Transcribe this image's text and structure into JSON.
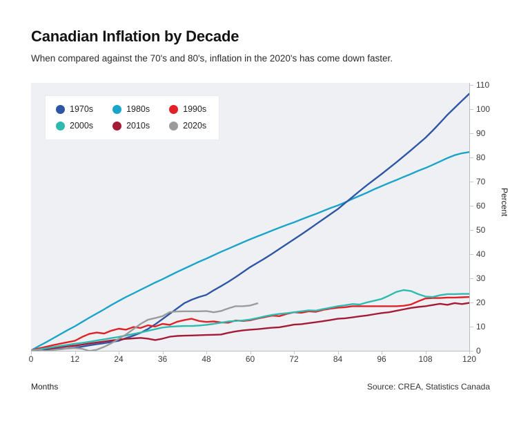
{
  "header": {
    "title": "Canadian Inflation by Decade",
    "subtitle": "When compared against the 70's and 80's, inflation in the 2020's has come down faster."
  },
  "footer": {
    "xlabel": "Months",
    "source": "Source: CREA, Statistics Canada"
  },
  "axes": {
    "ylabel": "Percent",
    "x_ticks": [
      0,
      12,
      24,
      36,
      48,
      60,
      72,
      84,
      96,
      108,
      120
    ],
    "y_ticks": [
      0,
      10,
      20,
      30,
      40,
      50,
      60,
      70,
      80,
      90,
      100,
      110
    ]
  },
  "colors": {
    "panel_background": "#eef0f3",
    "axis": "#b9bdc2",
    "legend_card": "#ffffff"
  },
  "chart_data": {
    "type": "line",
    "title": "Canadian Inflation by Decade",
    "xlabel": "Months",
    "ylabel": "Percent",
    "xlim": [
      0,
      120
    ],
    "ylim": [
      0,
      110
    ],
    "grid": false,
    "legend_position": "top-left",
    "x_step_months": 2,
    "series": [
      {
        "name": "1970s",
        "color": "#2e56a5",
        "values": [
          0,
          0.2,
          0.4,
          0.5,
          0.7,
          0.9,
          1.2,
          1.6,
          2.1,
          2.6,
          3.0,
          3.5,
          4.0,
          5.1,
          6.1,
          7.3,
          8.9,
          10.8,
          13.0,
          15.2,
          17.4,
          19.6,
          21.0,
          22.1,
          23.0,
          24.9,
          26.6,
          28.4,
          30.3,
          32.4,
          34.5,
          36.3,
          38.1,
          40.0,
          42.0,
          44.0,
          46.0,
          48.0,
          50.1,
          52.2,
          54.3,
          56.4,
          58.5,
          61.0,
          63.5,
          66.0,
          68.4,
          70.7,
          73.0,
          75.4,
          77.8,
          80.3,
          82.8,
          85.4,
          88.0,
          91.0,
          94.2,
          97.5,
          100.4,
          103.3,
          106.2
        ]
      },
      {
        "name": "1980s",
        "color": "#1ba4c9",
        "values": [
          0,
          1.7,
          3.3,
          5.0,
          6.7,
          8.4,
          10.0,
          11.8,
          13.6,
          15.3,
          17.0,
          18.8,
          20.5,
          22.1,
          23.6,
          25.1,
          26.6,
          28.1,
          29.5,
          31.0,
          32.5,
          33.9,
          35.3,
          36.7,
          38.0,
          39.4,
          40.8,
          42.1,
          43.4,
          44.7,
          46.0,
          47.2,
          48.4,
          49.6,
          50.8,
          51.9,
          53.0,
          54.2,
          55.4,
          56.5,
          57.7,
          58.9,
          60.0,
          61.3,
          62.7,
          64.0,
          65.3,
          66.7,
          68.0,
          69.3,
          70.5,
          71.8,
          73.0,
          74.3,
          75.5,
          76.8,
          78.2,
          79.6,
          80.8,
          81.6,
          82.1
        ]
      },
      {
        "name": "1990s",
        "color": "#e02127",
        "values": [
          0,
          0.8,
          1.5,
          2.2,
          2.8,
          3.4,
          4.0,
          5.6,
          6.9,
          7.4,
          7.0,
          8.2,
          9.0,
          8.6,
          9.7,
          9.3,
          10.4,
          9.9,
          11.0,
          10.6,
          11.9,
          12.6,
          13.1,
          12.2,
          11.8,
          12.0,
          11.6,
          11.5,
          12.4,
          12.2,
          12.5,
          13.2,
          13.8,
          14.4,
          14.2,
          15.1,
          15.8,
          15.6,
          16.2,
          16.0,
          16.8,
          17.3,
          17.7,
          17.9,
          18.3,
          18.3,
          18.3,
          18.3,
          18.3,
          18.3,
          18.3,
          18.5,
          19.0,
          20.3,
          21.5,
          21.7,
          21.7,
          21.9,
          21.9,
          22.0,
          22.1
        ]
      },
      {
        "name": "2000s",
        "color": "#2fbab0",
        "values": [
          0,
          0.4,
          0.9,
          1.4,
          1.9,
          2.3,
          2.8,
          3.1,
          3.6,
          4.1,
          4.6,
          5.1,
          5.6,
          6.2,
          6.8,
          7.4,
          8.1,
          8.8,
          9.5,
          9.8,
          10.0,
          10.1,
          10.1,
          10.3,
          10.6,
          11.0,
          11.5,
          12.0,
          12.2,
          12.4,
          12.8,
          13.4,
          14.1,
          14.7,
          15.1,
          15.4,
          15.8,
          16.2,
          16.6,
          16.5,
          17.1,
          17.7,
          18.3,
          18.7,
          19.2,
          19.0,
          19.9,
          20.6,
          21.3,
          22.7,
          24.2,
          25.0,
          24.6,
          23.3,
          22.3,
          22.1,
          22.9,
          23.3,
          23.3,
          23.4,
          23.4
        ]
      },
      {
        "name": "2010s",
        "color": "#a31b36",
        "values": [
          0,
          0.4,
          0.7,
          1.0,
          1.4,
          1.7,
          2.0,
          2.4,
          2.9,
          3.3,
          3.7,
          4.1,
          4.5,
          4.8,
          5.0,
          5.2,
          4.9,
          4.3,
          4.9,
          5.7,
          6.0,
          6.1,
          6.2,
          6.3,
          6.4,
          6.5,
          6.6,
          7.3,
          7.9,
          8.3,
          8.6,
          8.8,
          9.1,
          9.4,
          9.6,
          10.1,
          10.7,
          10.9,
          11.3,
          11.7,
          12.1,
          12.6,
          13.1,
          13.3,
          13.7,
          14.1,
          14.5,
          15.0,
          15.5,
          15.8,
          16.4,
          17.0,
          17.6,
          18.0,
          18.3,
          18.8,
          19.3,
          18.9,
          19.6,
          19.2,
          19.7
        ]
      },
      {
        "name": "2020s",
        "color": "#9b9b9b",
        "values": [
          0,
          0.3,
          -0.3,
          0.2,
          0.5,
          0.8,
          1.0,
          0.7,
          -0.2,
          0.3,
          1.5,
          3.0,
          4.8,
          6.6,
          8.8,
          11.0,
          12.7,
          13.4,
          14.2,
          15.9,
          16.1,
          16.2,
          16.2,
          16.2,
          16.3,
          15.8,
          16.3,
          17.4,
          18.3,
          18.3,
          18.6,
          19.5
        ]
      }
    ]
  }
}
